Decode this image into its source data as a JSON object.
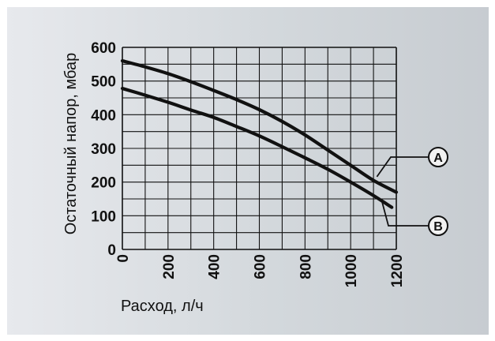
{
  "chart_data": {
    "type": "line",
    "title": "",
    "xlabel": "Расход, л/ч",
    "ylabel": "Остаточный напор, мбар",
    "xlim": [
      0,
      1200
    ],
    "ylim": [
      0,
      600
    ],
    "x_ticks": [
      "0",
      "200",
      "400",
      "600",
      "800",
      "1000",
      "1200"
    ],
    "y_ticks": [
      "0",
      "100",
      "200",
      "300",
      "400",
      "500",
      "600"
    ],
    "grid": true,
    "grid_x_step": 100,
    "grid_y_step": 50,
    "line_color": "#111111",
    "background_color": "#d7dbdf",
    "series": [
      {
        "name": "A",
        "x": [
          0,
          100,
          200,
          300,
          400,
          500,
          600,
          700,
          800,
          900,
          1000,
          1100,
          1200
        ],
        "values": [
          560,
          542,
          522,
          498,
          472,
          445,
          415,
          380,
          340,
          295,
          250,
          205,
          170
        ]
      },
      {
        "name": "B",
        "x": [
          0,
          100,
          200,
          300,
          400,
          500,
          600,
          700,
          800,
          900,
          1000,
          1100,
          1180
        ],
        "values": [
          478,
          458,
          437,
          414,
          392,
          365,
          337,
          305,
          272,
          238,
          200,
          160,
          125
        ]
      }
    ]
  }
}
